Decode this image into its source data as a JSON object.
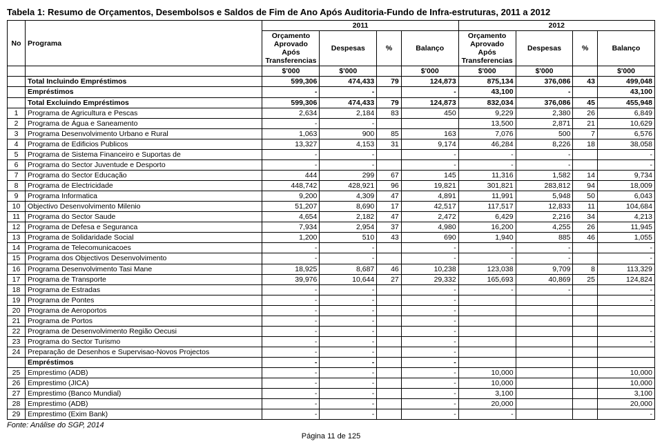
{
  "title": "Tabela 1: Resumo de Orçamentos, Desembolsos e Saldos de Fim de Ano Após Auditoria-Fundo de Infra-estruturas, 2011 a 2012",
  "header": {
    "no": "No",
    "programa": "Programa",
    "year1": "2011",
    "year2": "2012",
    "orc": "Orçamento Aprovado Após Transferencias",
    "desp": "Despesas",
    "pct": "%",
    "bal": "Balanço",
    "unit": "$'000"
  },
  "rows": [
    {
      "bold": true,
      "no": "",
      "prog": "Total Incluindo Empréstimos",
      "a1": "599,306",
      "a2": "474,433",
      "a3": "79",
      "a4": "124,873",
      "b1": "875,134",
      "b2": "376,086",
      "b3": "43",
      "b4": "499,048"
    },
    {
      "bold": true,
      "no": "",
      "prog": "Empréstimos",
      "a1": "-",
      "a2": "-",
      "a3": "",
      "a4": "-",
      "b1": "43,100",
      "b2": "-",
      "b3": "",
      "b4": "43,100"
    },
    {
      "bold": true,
      "no": "",
      "prog": "Total Excluindo Empréstimos",
      "a1": "599,306",
      "a2": "474,433",
      "a3": "79",
      "a4": "124,873",
      "b1": "832,034",
      "b2": "376,086",
      "b3": "45",
      "b4": "455,948"
    },
    {
      "no": "1",
      "prog": "Programa de Agricultura e Pescas",
      "a1": "2,634",
      "a2": "2,184",
      "a3": "83",
      "a4": "450",
      "b1": "9,229",
      "b2": "2,380",
      "b3": "26",
      "b4": "6,849"
    },
    {
      "no": "2",
      "prog": "Programa de Água e Saneamento",
      "a1": "-",
      "a2": "-",
      "a3": "",
      "a4": "",
      "b1": "13,500",
      "b2": "2,871",
      "b3": "21",
      "b4": "10,629"
    },
    {
      "no": "3",
      "prog": "Programa Desenvolvimento Urbano e Rural",
      "a1": "1,063",
      "a2": "900",
      "a3": "85",
      "a4": "163",
      "b1": "7,076",
      "b2": "500",
      "b3": "7",
      "b4": "6,576"
    },
    {
      "no": "4",
      "prog": "Programa de  Edificios Publicos",
      "a1": "13,327",
      "a2": "4,153",
      "a3": "31",
      "a4": "9,174",
      "b1": "46,284",
      "b2": "8,226",
      "b3": "18",
      "b4": "38,058"
    },
    {
      "no": "5",
      "prog": "Programa de Sistema Financeiro e Suportas de",
      "a1": "-",
      "a2": "-",
      "a3": "",
      "a4": "-",
      "b1": "-",
      "b2": "-",
      "b3": "",
      "b4": "-"
    },
    {
      "no": "6",
      "prog": "Programa do Sector Juventude e Desporto",
      "a1": "-",
      "a2": "-",
      "a3": "",
      "a4": "-",
      "b1": "-",
      "b2": "-",
      "b3": "",
      "b4": "-"
    },
    {
      "no": "7",
      "prog": "Programa do Sector Educação",
      "a1": "444",
      "a2": "299",
      "a3": "67",
      "a4": "145",
      "b1": "11,316",
      "b2": "1,582",
      "b3": "14",
      "b4": "9,734"
    },
    {
      "no": "8",
      "prog": "Programa de Electricidade",
      "a1": "448,742",
      "a2": "428,921",
      "a3": "96",
      "a4": "19,821",
      "b1": "301,821",
      "b2": "283,812",
      "b3": "94",
      "b4": "18,009"
    },
    {
      "no": "9",
      "prog": "Programa Informatica",
      "a1": "9,200",
      "a2": "4,309",
      "a3": "47",
      "a4": "4,891",
      "b1": "11,991",
      "b2": "5,948",
      "b3": "50",
      "b4": "6,043"
    },
    {
      "no": "10",
      "prog": "Objectivo Desenvolvimento Milenio",
      "a1": "51,207",
      "a2": "8,690",
      "a3": "17",
      "a4": "42,517",
      "b1": "117,517",
      "b2": "12,833",
      "b3": "11",
      "b4": "104,684"
    },
    {
      "no": "11",
      "prog": "Programa do Sector Saude",
      "a1": "4,654",
      "a2": "2,182",
      "a3": "47",
      "a4": "2,472",
      "b1": "6,429",
      "b2": "2,216",
      "b3": "34",
      "b4": "4,213"
    },
    {
      "no": "12",
      "prog": "Programa de Defesa e Seguranca",
      "a1": "7,934",
      "a2": "2,954",
      "a3": "37",
      "a4": "4,980",
      "b1": "16,200",
      "b2": "4,255",
      "b3": "26",
      "b4": "11,945"
    },
    {
      "no": "13",
      "prog": "Programa de Solidaridade Social",
      "a1": "1,200",
      "a2": "510",
      "a3": "43",
      "a4": "690",
      "b1": "1,940",
      "b2": "885",
      "b3": "46",
      "b4": "1,055"
    },
    {
      "no": "14",
      "prog": "Programa de Telecomunicacoes",
      "a1": "-",
      "a2": "-",
      "a3": "",
      "a4": "-",
      "b1": "-",
      "b2": "-",
      "b3": "",
      "b4": "-"
    },
    {
      "no": "15",
      "prog": "Programa dos Objectivos Desenvolvimento",
      "a1": "-",
      "a2": "-",
      "a3": "",
      "a4": "-",
      "b1": "-",
      "b2": "-",
      "b3": "",
      "b4": "-"
    },
    {
      "no": "16",
      "prog": "Programa Desenvolvimento Tasi Mane",
      "a1": "18,925",
      "a2": "8,687",
      "a3": "46",
      "a4": "10,238",
      "b1": "123,038",
      "b2": "9,709",
      "b3": "8",
      "b4": "113,329"
    },
    {
      "no": "17",
      "prog": "Programa de Transporte",
      "a1": "39,976",
      "a2": "10,644",
      "a3": "27",
      "a4": "29,332",
      "b1": "165,693",
      "b2": "40,869",
      "b3": "25",
      "b4": "124,824"
    },
    {
      "no": "18",
      "prog": "Programa de Estradas",
      "a1": "-",
      "a2": "-",
      "a3": "",
      "a4": "-",
      "b1": "-",
      "b2": "-",
      "b3": "",
      "b4": "-"
    },
    {
      "no": "19",
      "prog": "Programa de Pontes",
      "a1": "-",
      "a2": "-",
      "a3": "",
      "a4": "-",
      "b1": "",
      "b2": "",
      "b3": "",
      "b4": "-"
    },
    {
      "no": "20",
      "prog": "Programa de Aeroportos",
      "a1": "-",
      "a2": "-",
      "a3": "",
      "a4": "-",
      "b1": "",
      "b2": "",
      "b3": "",
      "b4": ""
    },
    {
      "no": "21",
      "prog": " Programa  de Portos",
      "a1": "-",
      "a2": "-",
      "a3": "",
      "a4": "-",
      "b1": "",
      "b2": "",
      "b3": "",
      "b4": ""
    },
    {
      "no": "22",
      "prog": "Programa de Desenvolvimento Região Oecusi",
      "a1": "-",
      "a2": "-",
      "a3": "",
      "a4": "-",
      "b1": "",
      "b2": "",
      "b3": "",
      "b4": "-"
    },
    {
      "no": "23",
      "prog": "Programa do Sector Turismo",
      "a1": "-",
      "a2": "-",
      "a3": "",
      "a4": "-",
      "b1": "",
      "b2": "",
      "b3": "",
      "b4": "-"
    },
    {
      "no": "24",
      "prog": "Preparação de Desenhos e Supervisao-Novos Projectos",
      "a1": "-",
      "a2": "-",
      "a3": "",
      "a4": "-",
      "b1": "",
      "b2": "",
      "b3": "",
      "b4": ""
    },
    {
      "bold": true,
      "no": "",
      "prog": "Empréstimos",
      "a1": "-",
      "a2": "-",
      "a3": "",
      "a4": "-",
      "b1": "",
      "b2": "",
      "b3": "",
      "b4": ""
    },
    {
      "no": "25",
      "prog": "Emprestimo (ADB)",
      "a1": "-",
      "a2": "-",
      "a3": "",
      "a4": "-",
      "b1": "10,000",
      "b2": "",
      "b3": "",
      "b4": "10,000"
    },
    {
      "no": "26",
      "prog": "Emprestimo (JICA)",
      "a1": "-",
      "a2": "-",
      "a3": "",
      "a4": "-",
      "b1": "10,000",
      "b2": "",
      "b3": "",
      "b4": "10,000"
    },
    {
      "no": "27",
      "prog": "Emprestimo (Banco Mundial)",
      "a1": "-",
      "a2": "-",
      "a3": "",
      "a4": "-",
      "b1": "3,100",
      "b2": "",
      "b3": "",
      "b4": "3,100"
    },
    {
      "no": "28",
      "prog": "Emprestimo (ADB)",
      "a1": "-",
      "a2": "-",
      "a3": "",
      "a4": "-",
      "b1": "20,000",
      "b2": "",
      "b3": "",
      "b4": "20,000"
    },
    {
      "no": "29",
      "prog": "Emprestimo (Exim Bank)",
      "a1": "-",
      "a2": "-",
      "a3": "",
      "a4": "-",
      "b1": "-",
      "b2": "",
      "b3": "",
      "b4": "-"
    }
  ],
  "source": "Fonte: Análise do SGP, 2014",
  "pager": "Página 11 de 125"
}
